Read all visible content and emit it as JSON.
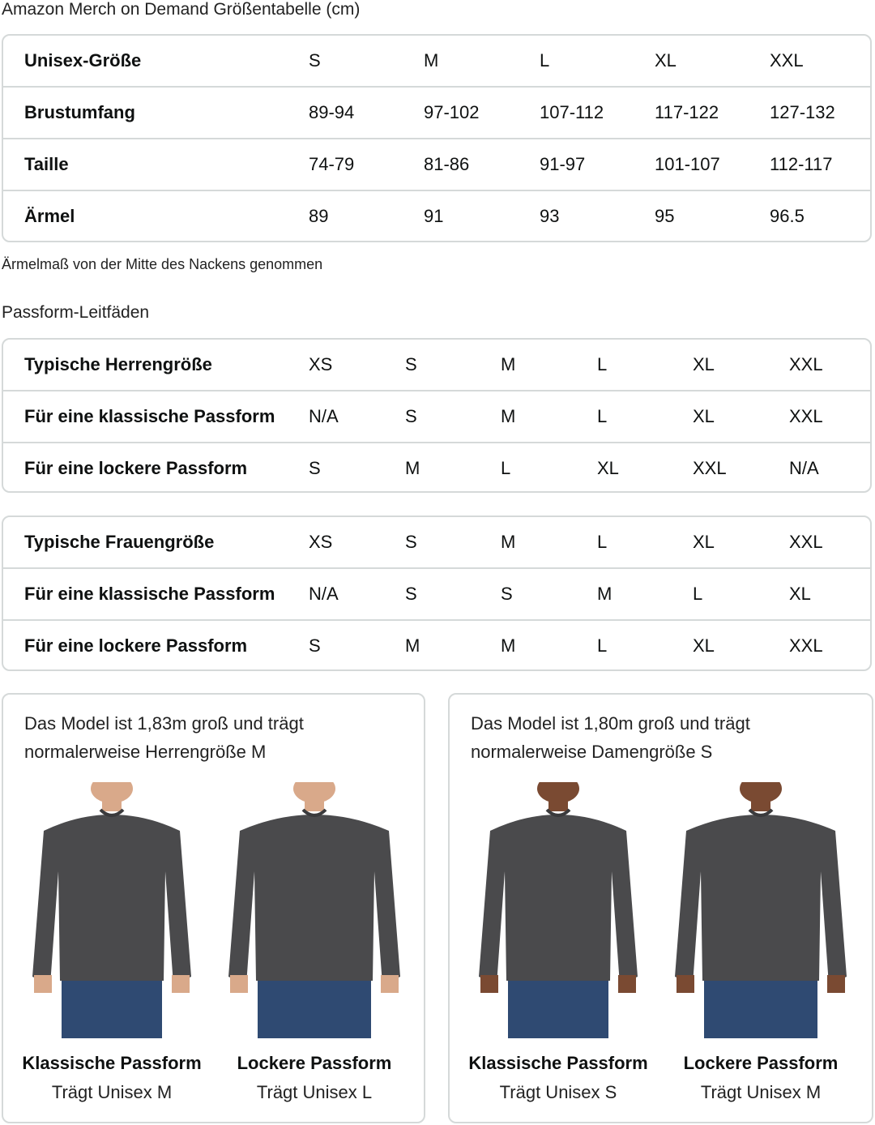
{
  "title": "Amazon Merch on Demand Größentabelle (cm)",
  "size_table": {
    "rows": [
      [
        "Unisex-Größe",
        "S",
        "M",
        "L",
        "XL",
        "XXL"
      ],
      [
        "Brustumfang",
        "89-94",
        "97-102",
        "107-112",
        "117-122",
        "127-132"
      ],
      [
        "Taille",
        "74-79",
        "81-86",
        "91-97",
        "101-107",
        "112-117"
      ],
      [
        "Ärmel",
        "89",
        "91",
        "93",
        "95",
        "96.5"
      ]
    ]
  },
  "note": "Ärmelmaß von der Mitte des Nackens genommen",
  "fit_title": "Passform-Leitfäden",
  "men_table": {
    "rows": [
      [
        "Typische Herrengröße",
        "XS",
        "S",
        "M",
        "L",
        "XL",
        "XXL"
      ],
      [
        "Für eine klassische Passform",
        "N/A",
        "S",
        "M",
        "L",
        "XL",
        "XXL"
      ],
      [
        "Für eine lockere Passform",
        "S",
        "M",
        "L",
        "XL",
        "XXL",
        "N/A"
      ]
    ]
  },
  "women_table": {
    "rows": [
      [
        "Typische Frauengröße",
        "XS",
        "S",
        "M",
        "L",
        "XL",
        "XXL"
      ],
      [
        "Für eine klassische Passform",
        "N/A",
        "S",
        "S",
        "M",
        "L",
        "XL"
      ],
      [
        "Für eine lockere Passform",
        "S",
        "M",
        "M",
        "L",
        "XL",
        "XXL"
      ]
    ]
  },
  "cards": [
    {
      "text": "Das Model ist 1,83m groß und trägt normalerweise Herrengröße M",
      "figures": [
        {
          "title": "Klassische Passform",
          "sub": "Trägt Unisex M",
          "skin": "#d9a98a"
        },
        {
          "title": "Lockere Passform",
          "sub": "Trägt Unisex L",
          "skin": "#d9a98a"
        }
      ]
    },
    {
      "text": "Das Model ist 1,80m groß und trägt normalerweise Damengröße S",
      "figures": [
        {
          "title": "Klassische Passform",
          "sub": "Trägt Unisex S",
          "skin": "#7a4a32"
        },
        {
          "title": "Lockere Passform",
          "sub": "Trägt Unisex M",
          "skin": "#7a4a32"
        }
      ]
    }
  ],
  "colors": {
    "border": "#d5d9d9",
    "sweater": "#4a4a4c",
    "jeans": "#2f4a72"
  }
}
